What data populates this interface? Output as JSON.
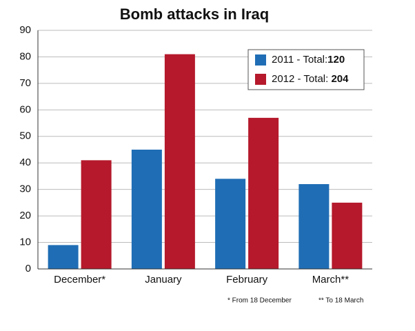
{
  "chart_data": {
    "type": "bar",
    "title": "Bomb attacks in Iraq",
    "categories": [
      "December*",
      "January",
      "February",
      "March**"
    ],
    "series": [
      {
        "name": "2011 - Total:",
        "total": 120,
        "color": "#1f6db5",
        "values": [
          9,
          45,
          34,
          32
        ]
      },
      {
        "name": "2012 - Total: ",
        "total": 204,
        "color": "#b5192b",
        "values": [
          41,
          81,
          57,
          25
        ]
      }
    ],
    "ylim": [
      0,
      90
    ],
    "yticks": [
      0,
      10,
      20,
      30,
      40,
      50,
      60,
      70,
      80,
      90
    ],
    "grid": true,
    "legend": "upper right",
    "notes": [
      "* From 18 December",
      "** To 18 March"
    ]
  }
}
